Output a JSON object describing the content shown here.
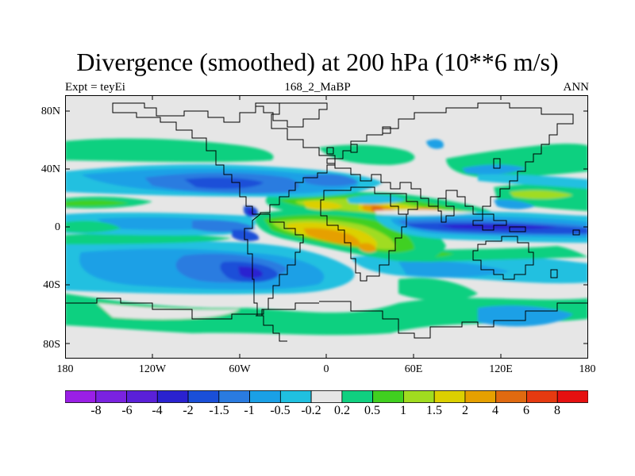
{
  "title": "Divergence (smoothed) at 200 hPa (10**6 m/s)",
  "subtitle_left": "Expt = teyEi",
  "subtitle_center": "168_2_MaBP",
  "subtitle_right": "ANN",
  "y_axis": {
    "ticks": [
      "80N",
      "40N",
      "0",
      "40S",
      "80S"
    ]
  },
  "x_axis": {
    "ticks": [
      "180",
      "120W",
      "60W",
      "0",
      "60E",
      "120E",
      "180"
    ]
  },
  "colorbar": {
    "colors": [
      "#9a1fe6",
      "#7a22e0",
      "#5a20d8",
      "#2a22d0",
      "#1a4fd8",
      "#2a7be0",
      "#1aa0e6",
      "#20c0e0",
      "#e6e6e6",
      "#10d080",
      "#40d020",
      "#a0dc20",
      "#dcd000",
      "#e6a000",
      "#e06a10",
      "#e63a10",
      "#e61010"
    ],
    "labels": [
      "-8",
      "-6",
      "-4",
      "-2",
      "-1.5",
      "-1",
      "-0.5",
      "-0.2",
      "0.2",
      "0.5",
      "1",
      "1.5",
      "2",
      "4",
      "6",
      "8"
    ]
  }
}
